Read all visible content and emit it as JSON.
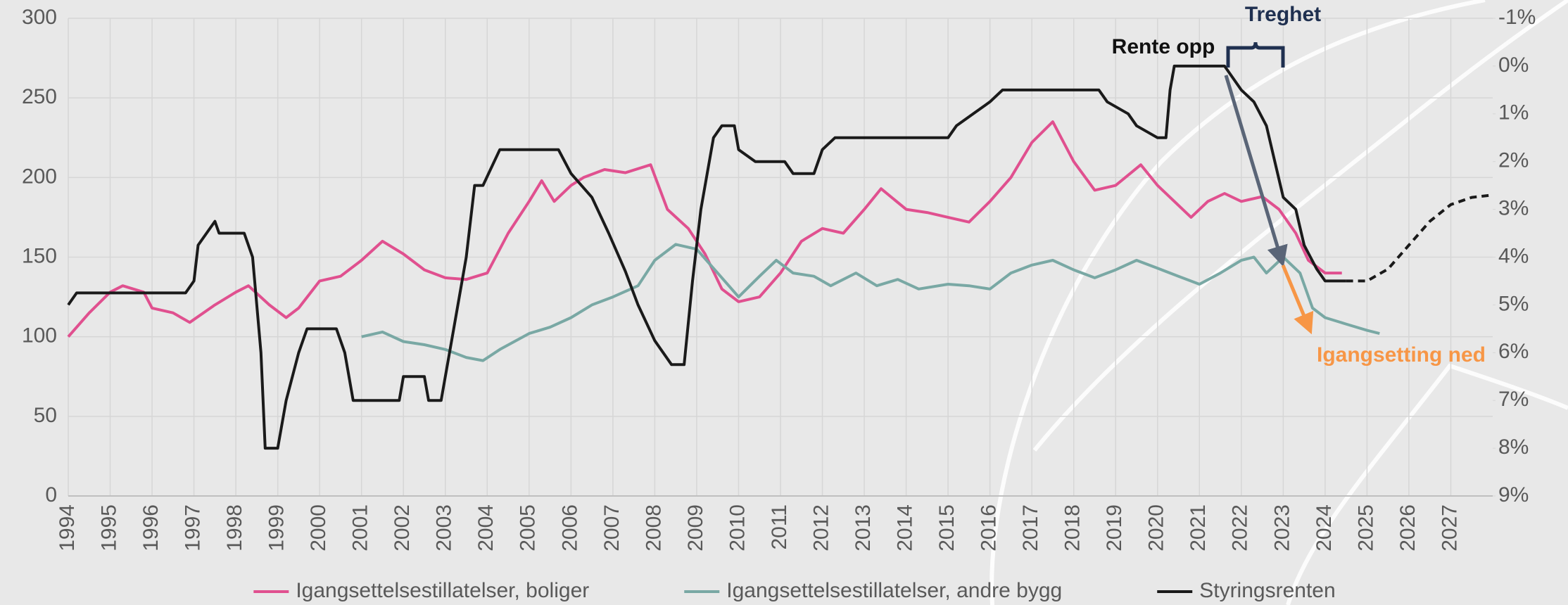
{
  "chart_data": {
    "type": "line",
    "xlim": [
      1994,
      2028
    ],
    "xticks": [
      1994,
      1995,
      1996,
      1997,
      1998,
      1999,
      2000,
      2001,
      2002,
      2003,
      2004,
      2005,
      2006,
      2007,
      2008,
      2009,
      2010,
      2011,
      2012,
      2013,
      2014,
      2015,
      2016,
      2017,
      2018,
      2019,
      2020,
      2021,
      2022,
      2023,
      2024,
      2025,
      2026,
      2027
    ],
    "ylim": [
      0,
      300
    ],
    "yticks": [
      0,
      50,
      100,
      150,
      200,
      250,
      300
    ],
    "y2lim": [
      9,
      -1
    ],
    "y2ticks": [
      {
        "value": -1,
        "label": "-1%"
      },
      {
        "value": 0,
        "label": "0%"
      },
      {
        "value": 1,
        "label": "1%"
      },
      {
        "value": 2,
        "label": "2%"
      },
      {
        "value": 3,
        "label": "3%"
      },
      {
        "value": 4,
        "label": "4%"
      },
      {
        "value": 5,
        "label": "5%"
      },
      {
        "value": 6,
        "label": "6%"
      },
      {
        "value": 7,
        "label": "7%"
      },
      {
        "value": 8,
        "label": "8%"
      },
      {
        "value": 9,
        "label": "9%"
      }
    ],
    "grid": true,
    "legend": "bottom",
    "annotations": [
      "Rente opp",
      "Treghet",
      "Igangsetting ned"
    ],
    "series": [
      {
        "name": "Igangsettelsestillatelser, boliger",
        "color": "#e0508f",
        "x": [
          1994.0,
          1994.5,
          1995.0,
          1995.3,
          1995.8,
          1996.0,
          1996.5,
          1996.9,
          1997.5,
          1998.0,
          1998.3,
          1998.8,
          1999.2,
          1999.5,
          2000.0,
          2000.5,
          2001.0,
          2001.5,
          2002.0,
          2002.5,
          2003.0,
          2003.5,
          2004.0,
          2004.5,
          2005.0,
          2005.3,
          2005.6,
          2006.0,
          2006.3,
          2006.8,
          2007.3,
          2007.9,
          2008.3,
          2008.8,
          2009.2,
          2009.6,
          2010.0,
          2010.5,
          2011.0,
          2011.5,
          2012.0,
          2012.5,
          2013.0,
          2013.4,
          2014.0,
          2014.5,
          2015.0,
          2015.5,
          2016.0,
          2016.5,
          2017.0,
          2017.5,
          2018.0,
          2018.5,
          2019.0,
          2019.6,
          2020.0,
          2020.8,
          2021.2,
          2021.6,
          2022.0,
          2022.5,
          2022.9,
          2023.3,
          2023.6,
          2024.0,
          2024.4
        ],
        "values": [
          100,
          115,
          128,
          132,
          128,
          118,
          115,
          109,
          120,
          128,
          132,
          120,
          112,
          118,
          135,
          138,
          148,
          160,
          152,
          142,
          137,
          136,
          140,
          165,
          185,
          198,
          185,
          195,
          200,
          205,
          203,
          208,
          180,
          168,
          152,
          130,
          122,
          125,
          140,
          160,
          168,
          165,
          180,
          193,
          180,
          178,
          175,
          172,
          185,
          200,
          222,
          235,
          210,
          192,
          195,
          208,
          195,
          175,
          185,
          190,
          185,
          188,
          180,
          165,
          148,
          140,
          140
        ]
      },
      {
        "name": "Igangsettelsestillatelser, andre bygg",
        "color": "#79a8a4",
        "x": [
          2001.0,
          2001.5,
          2002.0,
          2002.5,
          2003.0,
          2003.5,
          2003.9,
          2004.3,
          2005.0,
          2005.5,
          2006.0,
          2006.5,
          2007.0,
          2007.6,
          2008.0,
          2008.5,
          2009.0,
          2009.5,
          2010.0,
          2010.5,
          2010.9,
          2011.3,
          2011.8,
          2012.2,
          2012.8,
          2013.3,
          2013.8,
          2014.3,
          2015.0,
          2015.5,
          2016.0,
          2016.5,
          2017.0,
          2017.5,
          2018.0,
          2018.5,
          2019.0,
          2019.5,
          2020.0,
          2020.5,
          2021.0,
          2021.5,
          2022.0,
          2022.3,
          2022.6,
          2023.0,
          2023.4,
          2023.7,
          2024.0,
          2024.5,
          2025.0,
          2025.3
        ],
        "values": [
          100,
          103,
          97,
          95,
          92,
          87,
          85,
          92,
          102,
          106,
          112,
          120,
          125,
          132,
          148,
          158,
          155,
          140,
          125,
          138,
          148,
          140,
          138,
          132,
          140,
          132,
          136,
          130,
          133,
          132,
          130,
          140,
          145,
          148,
          142,
          137,
          142,
          148,
          143,
          138,
          133,
          140,
          148,
          150,
          140,
          150,
          140,
          118,
          112,
          108,
          104,
          102
        ]
      },
      {
        "name": "Styringsrenten",
        "color": "#1a1a1a",
        "axis": "y2",
        "x": [
          1994.0,
          1994.2,
          1996.8,
          1997.0,
          1997.1,
          1997.5,
          1997.6,
          1998.2,
          1998.4,
          1998.6,
          1998.7,
          1999.0,
          1999.2,
          1999.5,
          1999.7,
          2000.0,
          2000.4,
          2000.6,
          2000.8,
          2001.9,
          2002.0,
          2002.5,
          2002.6,
          2002.9,
          2003.2,
          2003.5,
          2003.7,
          2003.9,
          2004.3,
          2005.7,
          2006.0,
          2006.5,
          2006.9,
          2007.3,
          2007.6,
          2008.0,
          2008.4,
          2008.7,
          2008.9,
          2009.1,
          2009.4,
          2009.6,
          2009.9,
          2010.0,
          2010.4,
          2011.1,
          2011.3,
          2011.8,
          2012.0,
          2012.3,
          2015.0,
          2015.2,
          2015.6,
          2016.0,
          2016.3,
          2018.6,
          2018.8,
          2019.3,
          2019.5,
          2020.0,
          2020.2,
          2020.3,
          2020.4,
          2021.6,
          2021.8,
          2022.0,
          2022.3,
          2022.6,
          2022.8,
          2023.0,
          2023.3,
          2023.5,
          2023.8,
          2024.0,
          2024.5
        ],
        "values": [
          5.0,
          4.75,
          4.75,
          4.5,
          3.75,
          3.25,
          3.5,
          3.5,
          4.0,
          6.0,
          8.0,
          8.0,
          7.0,
          6.0,
          5.5,
          5.5,
          5.5,
          6.0,
          7.0,
          7.0,
          6.5,
          6.5,
          7.0,
          7.0,
          5.5,
          4.0,
          2.5,
          2.5,
          1.75,
          1.75,
          2.25,
          2.75,
          3.5,
          4.3,
          5.0,
          5.75,
          6.25,
          6.25,
          4.5,
          3.0,
          1.5,
          1.25,
          1.25,
          1.75,
          2.0,
          2.0,
          2.25,
          2.25,
          1.75,
          1.5,
          1.5,
          1.25,
          1.0,
          0.75,
          0.5,
          0.5,
          0.75,
          1.0,
          1.25,
          1.5,
          1.5,
          0.5,
          0.0,
          0.0,
          0.25,
          0.5,
          0.75,
          1.25,
          2.0,
          2.75,
          3.0,
          3.75,
          4.25,
          4.5,
          4.5
        ]
      },
      {
        "color": "#1a1a1a",
        "axis": "y2",
        "dash": true,
        "x": [
          2024.5,
          2025.0,
          2025.5,
          2026.0,
          2026.5,
          2027.0,
          2027.5,
          2028.0
        ],
        "values": [
          4.5,
          4.5,
          4.25,
          3.75,
          3.25,
          2.9,
          2.75,
          2.7
        ]
      }
    ]
  }
}
